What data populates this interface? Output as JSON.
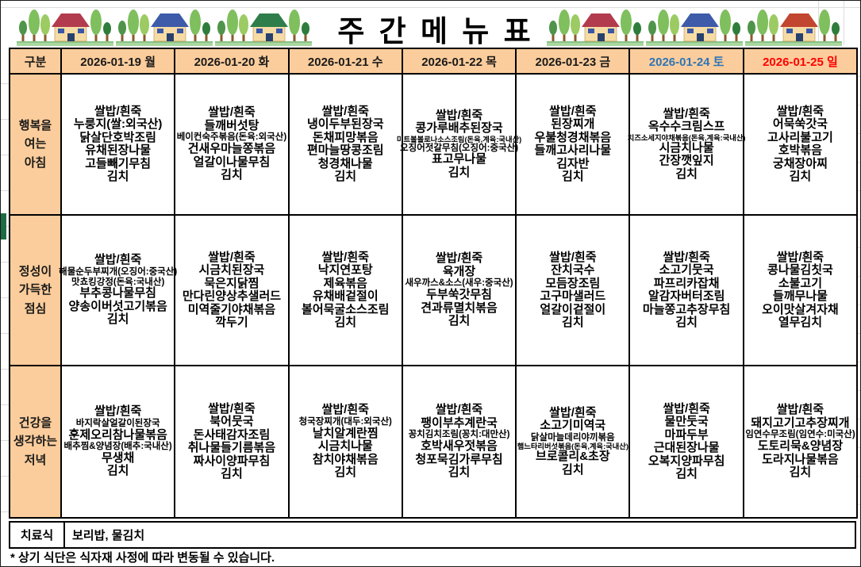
{
  "title": "주 간 메 뉴 표",
  "colors": {
    "header_bg": "#FCCD9C",
    "saturday_text": "#2E75B6",
    "sunday_text": "#FF0000",
    "weekday_text": "#1a1a1a",
    "border": "#000000",
    "green_strip": "#1E6B44"
  },
  "table": {
    "corner_label": "구분",
    "days": [
      {
        "label": "2026-01-19 월",
        "color": "#1a1a1a"
      },
      {
        "label": "2026-01-20 화",
        "color": "#1a1a1a"
      },
      {
        "label": "2026-01-21 수",
        "color": "#1a1a1a"
      },
      {
        "label": "2026-01-22 목",
        "color": "#1a1a1a"
      },
      {
        "label": "2026-01-23 금",
        "color": "#1a1a1a"
      },
      {
        "label": "2026-01-24 토",
        "color": "#2E75B6"
      },
      {
        "label": "2026-01-25 일",
        "color": "#FF0000"
      }
    ],
    "meal_rows": [
      {
        "id": "breakfast",
        "label_lines": [
          "행복을",
          "여는",
          "아침"
        ],
        "cells": [
          [
            "쌀밥/흰죽",
            "누룽지(쌀:외국산)",
            "닭살단호박조림",
            "유채된장나물",
            "고들빼기무침",
            "김치"
          ],
          [
            "쌀밥/흰죽",
            "들깨버섯탕",
            {
              "t": "베이컨숙주볶음(돈육:외국산)",
              "s": "m"
            },
            "건새우마늘쫑볶음",
            "얼갈이나물무침",
            "김치"
          ],
          [
            "쌀밥/흰죽",
            "냉이두부된장국",
            "돈채피망볶음",
            "편마늘땅콩조림",
            "청경채나물",
            "김치"
          ],
          [
            "쌀밥/흰죽",
            "콩가루배추된장국",
            {
              "t": "미트볼볼로나소스조림(돈육,계육:국내산)",
              "s": "s"
            },
            {
              "t": "오징어젓갈무침(오징어:중국산)",
              "s": "m"
            },
            "표고무나물",
            "김치"
          ],
          [
            "쌀밥/흰죽",
            "된장찌개",
            "우불청경채볶음",
            "들깨고사리나물",
            "김자반",
            "김치"
          ],
          [
            "쌀밥/흰죽",
            "옥수수크림스프",
            {
              "t": "치즈소세지야채볶음(돈육,계육:국내산)",
              "s": "s"
            },
            "시금치나물",
            "간장깻잎지",
            "김치"
          ],
          [
            "쌀밥/흰죽",
            "어묵쑥갓국",
            "고사리불고기",
            "호박볶음",
            "궁채장아찌",
            "김치"
          ]
        ]
      },
      {
        "id": "lunch",
        "label_lines": [
          "정성이",
          "가득한",
          "점심"
        ],
        "cells": [
          [
            "쌀밥/흰죽",
            {
              "t": "해물순두부찌개(오징어:중국산)",
              "s": "m"
            },
            {
              "t": "맛쵸킹강정(돈육:국내산)",
              "s": "m"
            },
            "부추콩나물무침",
            "양송이버섯고기볶음",
            "김치"
          ],
          [
            "쌀밥/흰죽",
            "시금치된장국",
            "묵은지닭찜",
            "만다린양상추샐러드",
            "미역줄기야채볶음",
            "깍두기"
          ],
          [
            "쌀밥/흰죽",
            "낙지연포탕",
            "제육볶음",
            "유채배겉절이",
            "볼어묵굴소스조림",
            "김치"
          ],
          [
            "쌀밥/흰죽",
            "육개장",
            {
              "t": "새우까스&소스(새우:중국산)",
              "s": "m"
            },
            "두부쑥갓무침",
            "견과류멸치볶음",
            "김치"
          ],
          [
            "쌀밥/흰죽",
            "잔치국수",
            "모듬장조림",
            "고구마샐러드",
            "얼갈이겉절이",
            "김치"
          ],
          [
            "쌀밥/흰죽",
            "소고기뭇국",
            "파프리카잡채",
            "알감자버터조림",
            "마늘쫑고추장무침",
            "김치"
          ],
          [
            "쌀밥/흰죽",
            "콩나물김칫국",
            "소불고기",
            "들깨무나물",
            "오이맛살겨자채",
            "열무김치"
          ]
        ]
      },
      {
        "id": "dinner",
        "label_lines": [
          "건강을",
          "생각하는",
          "저녁"
        ],
        "cells": [
          [
            "쌀밥/흰죽",
            {
              "t": "바지락살얼갈이된장국",
              "s": "m"
            },
            "훈제오리참나물볶음",
            {
              "t": "배추찜&양념장(배추:국내산)",
              "s": "m"
            },
            "무생채",
            "김치"
          ],
          [
            "쌀밥/흰죽",
            "북어뭇국",
            "돈사태감자조림",
            "취나물들기름볶음",
            "짜사이양파무침",
            "김치"
          ],
          [
            "쌀밥/흰죽",
            {
              "t": "청국장찌개(대두:외국산)",
              "s": "m"
            },
            "날치알계란찜",
            "시금치나물",
            "참치야채볶음",
            "김치"
          ],
          [
            "쌀밥/흰죽",
            "팽이부추계란국",
            {
              "t": "꽁치김치조림(꽁치:대만산)",
              "s": "m"
            },
            "호박새우젓볶음",
            "청포묵김가루무침",
            "김치"
          ],
          [
            "쌀밥/흰죽",
            "소고기미역국",
            {
              "t": "닭살마늘데리야끼볶음",
              "s": "m"
            },
            {
              "t": "햄느타리버섯볶음(돈육,계육:국내산)",
              "s": "s"
            },
            "브로콜리&초장",
            "김치"
          ],
          [
            "쌀밥/흰죽",
            "물만둣국",
            "마파두부",
            "근대된장나물",
            "오복지양파무침",
            "김치"
          ],
          [
            "쌀밥/흰죽",
            "돼지고기고추장찌개",
            {
              "t": "임연수무조림(임연수:미국산)",
              "s": "m"
            },
            "도토리묵&양념장",
            "도라지나물볶음",
            "김치"
          ]
        ]
      }
    ],
    "therapy": {
      "label": "치료식",
      "value": "보리밥, 물김치"
    }
  },
  "note": "* 상기 식단은 식자재 사정에 따라 변동될 수 있습니다.",
  "decor": {
    "left_roofs": [
      "#B23B4E",
      "#3D5BA9",
      "#2F7D4B"
    ],
    "right_roofs": [
      "#B23B4E",
      "#3D5BA9",
      "#C2452F"
    ],
    "tree_colors": [
      "#4F944A",
      "#7FBF5E",
      "#9CCB63",
      "#2F7D3B"
    ],
    "grass_color": "#A9D7A0",
    "wall_color": "#F6DCA4"
  }
}
